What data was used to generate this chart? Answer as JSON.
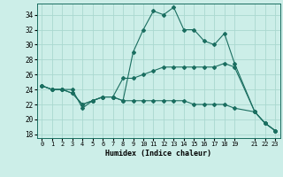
{
  "xlabel": "Humidex (Indice chaleur)",
  "bg_color": "#cceee8",
  "grid_color": "#aad8d0",
  "line_color": "#1a6e60",
  "xlim": [
    -0.5,
    23.5
  ],
  "ylim": [
    17.5,
    35.5
  ],
  "yticks": [
    18,
    20,
    22,
    24,
    26,
    28,
    30,
    32,
    34
  ],
  "xtick_positions": [
    0,
    1,
    2,
    3,
    4,
    5,
    6,
    7,
    8,
    9,
    10,
    11,
    12,
    13,
    14,
    15,
    16,
    17,
    18,
    19,
    21,
    22,
    23
  ],
  "xtick_labels": [
    "0",
    "1",
    "2",
    "3",
    "4",
    "5",
    "6",
    "7",
    "8",
    "9",
    "10",
    "11",
    "12",
    "13",
    "14",
    "15",
    "16",
    "17",
    "18",
    "19",
    "21",
    "22",
    "23"
  ],
  "series1_x": [
    0,
    1,
    2,
    3,
    4,
    5,
    6,
    7,
    8,
    9,
    10,
    11,
    12,
    13,
    14,
    15,
    16,
    17,
    18,
    19,
    21,
    22,
    23
  ],
  "series1_y": [
    24.5,
    24.0,
    24.0,
    24.0,
    21.5,
    22.5,
    23.0,
    23.0,
    22.5,
    29.0,
    32.0,
    34.5,
    34.0,
    35.0,
    32.0,
    32.0,
    30.5,
    30.0,
    31.5,
    27.5,
    21.0,
    19.5,
    18.5
  ],
  "series2_x": [
    0,
    1,
    2,
    3,
    4,
    5,
    6,
    7,
    8,
    9,
    10,
    11,
    12,
    13,
    14,
    15,
    16,
    17,
    18,
    19,
    21,
    22,
    23
  ],
  "series2_y": [
    24.5,
    24.0,
    24.0,
    23.5,
    22.0,
    22.5,
    23.0,
    23.0,
    25.5,
    25.5,
    26.0,
    26.5,
    27.0,
    27.0,
    27.0,
    27.0,
    27.0,
    27.0,
    27.5,
    27.0,
    21.0,
    19.5,
    18.5
  ],
  "series3_x": [
    0,
    1,
    2,
    3,
    4,
    5,
    6,
    7,
    8,
    9,
    10,
    11,
    12,
    13,
    14,
    15,
    16,
    17,
    18,
    19,
    21,
    22,
    23
  ],
  "series3_y": [
    24.5,
    24.0,
    24.0,
    23.5,
    22.0,
    22.5,
    23.0,
    23.0,
    22.5,
    22.5,
    22.5,
    22.5,
    22.5,
    22.5,
    22.5,
    22.0,
    22.0,
    22.0,
    22.0,
    21.5,
    21.0,
    19.5,
    18.5
  ]
}
